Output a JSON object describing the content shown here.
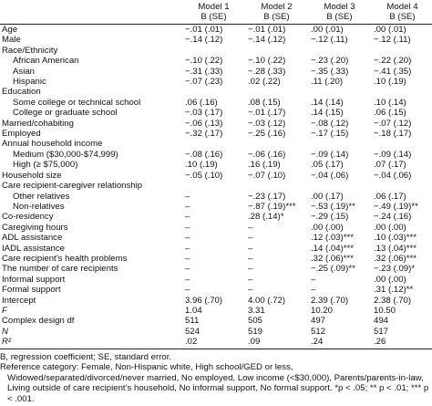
{
  "table": {
    "header": [
      [
        "Model 1",
        "B (SE)"
      ],
      [
        "Model 2",
        "B (SE)"
      ],
      [
        "Model 3",
        "B (SE)"
      ],
      [
        "Model 4",
        "B (SE)"
      ]
    ],
    "rows": [
      [
        "Age",
        "−.01 (.01)",
        "−.01 (.01)",
        ".00 (.01)",
        ".00 (.01)"
      ],
      [
        "Male",
        "−.14 (.12)",
        "−.14 (.12)",
        "−.12 (.11)",
        "−.12 (.11)"
      ],
      {
        "label": "Race/Ethnicity",
        "rows": [
          [
            "African American",
            "−.10 (.22)",
            "−.10 (.22)",
            "−.23 (.20)",
            "−.22 (.20)"
          ],
          [
            "Asian",
            "−.31 (.33)",
            "−.28 (.33)",
            "−.35 (.33)",
            "−.41 (.35)"
          ],
          [
            "Hispanic",
            "−.07 (.23)",
            ".02 (.22)",
            ".11 (.20)",
            ".10 (.19)"
          ]
        ]
      },
      {
        "label": "Education",
        "rows": [
          [
            "Some college or technical school",
            ".06 (.16)",
            ".08 (.15)",
            ".14 (.14)",
            ".10 (.14)"
          ],
          [
            "College or graduate school",
            "−.03 (.17)",
            "−.01 (.17)",
            ".14 (.15)",
            ".06 (.15)"
          ]
        ]
      },
      [
        "Married/cohabiting",
        "−.06 (.13)",
        "−.03 (.12)",
        "−.08 (.12)",
        "−.07 (.12)"
      ],
      [
        "Employed",
        "−.32 (.17)",
        "−.25 (.16)",
        "−.17 (.15)",
        "−.18 (.17)"
      ],
      {
        "label": "Annual household income",
        "rows": [
          [
            "Medium ($30,000-$74,999)",
            "−.08 (.16)",
            "−.06 (.16)",
            "−.09 (.14)",
            "−.09 (.14)"
          ],
          [
            "High (≥ $75,000)",
            ".10 (.19)",
            ".16 (.19)",
            ".05 (.17)",
            ".07 (.17)"
          ]
        ]
      },
      [
        "Household size",
        "−.05 (.10)",
        "−.07 (.10)",
        "−.04 (.06)",
        "−.04 (.06)"
      ],
      {
        "label": "Care recipient-caregiver relationship",
        "rows": [
          [
            "Other relatives",
            "–",
            "−.23 (.17)",
            ".00 (.17)",
            ".06 (.17)"
          ],
          [
            "Non-relatives",
            "–",
            "−.87 (.19)***",
            "−.53 (.19)**",
            "−.49 (.19)**"
          ]
        ]
      },
      [
        "Co-residency",
        "–",
        ".28 (.14)*",
        "−.29 (.15)",
        "−.24 (.16)"
      ],
      [
        "Caregiving hours",
        "–",
        "–",
        ".00 (.00)",
        ".00 (.00)"
      ],
      [
        "ADL assistance",
        "–",
        "–",
        ".12 (.03)***",
        ".10 (.03)***"
      ],
      [
        "IADL assistance",
        "–",
        "–",
        ".14 (.04)***",
        ".13 (.04)***"
      ],
      [
        "Care recipient’s health problems",
        "–",
        "–",
        ".32 (.06)***",
        ".32 (.06)***"
      ],
      [
        "The number of care recipients",
        "–",
        "–",
        "−.25 (.09)**",
        "−.23 (.09)*"
      ],
      [
        "Informal support",
        "–",
        "–",
        "–",
        ".00 (.00)"
      ],
      [
        "Formal support",
        "–",
        "–",
        "–",
        ".31 (.12)**"
      ],
      [
        "Intercept",
        "3.96 (.70)",
        "4.00 (.72)",
        "2.39 (.70)",
        "2.38 (.70)"
      ],
      [
        "F",
        "1.04",
        "3.31",
        "10.20",
        "10.50"
      ],
      [
        "Complex design df",
        "511",
        "505",
        "497",
        "494"
      ],
      [
        "N",
        "524",
        "519",
        "512",
        "517"
      ],
      [
        "R²",
        ".02",
        ".09",
        ".24",
        ".26"
      ]
    ],
    "notes": [
      "B, regression coefficient; SE, standard error.",
      "Reference category: Female, Non-Hispanic white, High school/GED or less, Widowed/separated/divorced/never married, No employed, Low income (<$30,000), Parents/parents-in-law, Living outside of care recipient’s household, No informal support, No formal support. *p < .05; ** p < .01; *** p < .001."
    ]
  }
}
